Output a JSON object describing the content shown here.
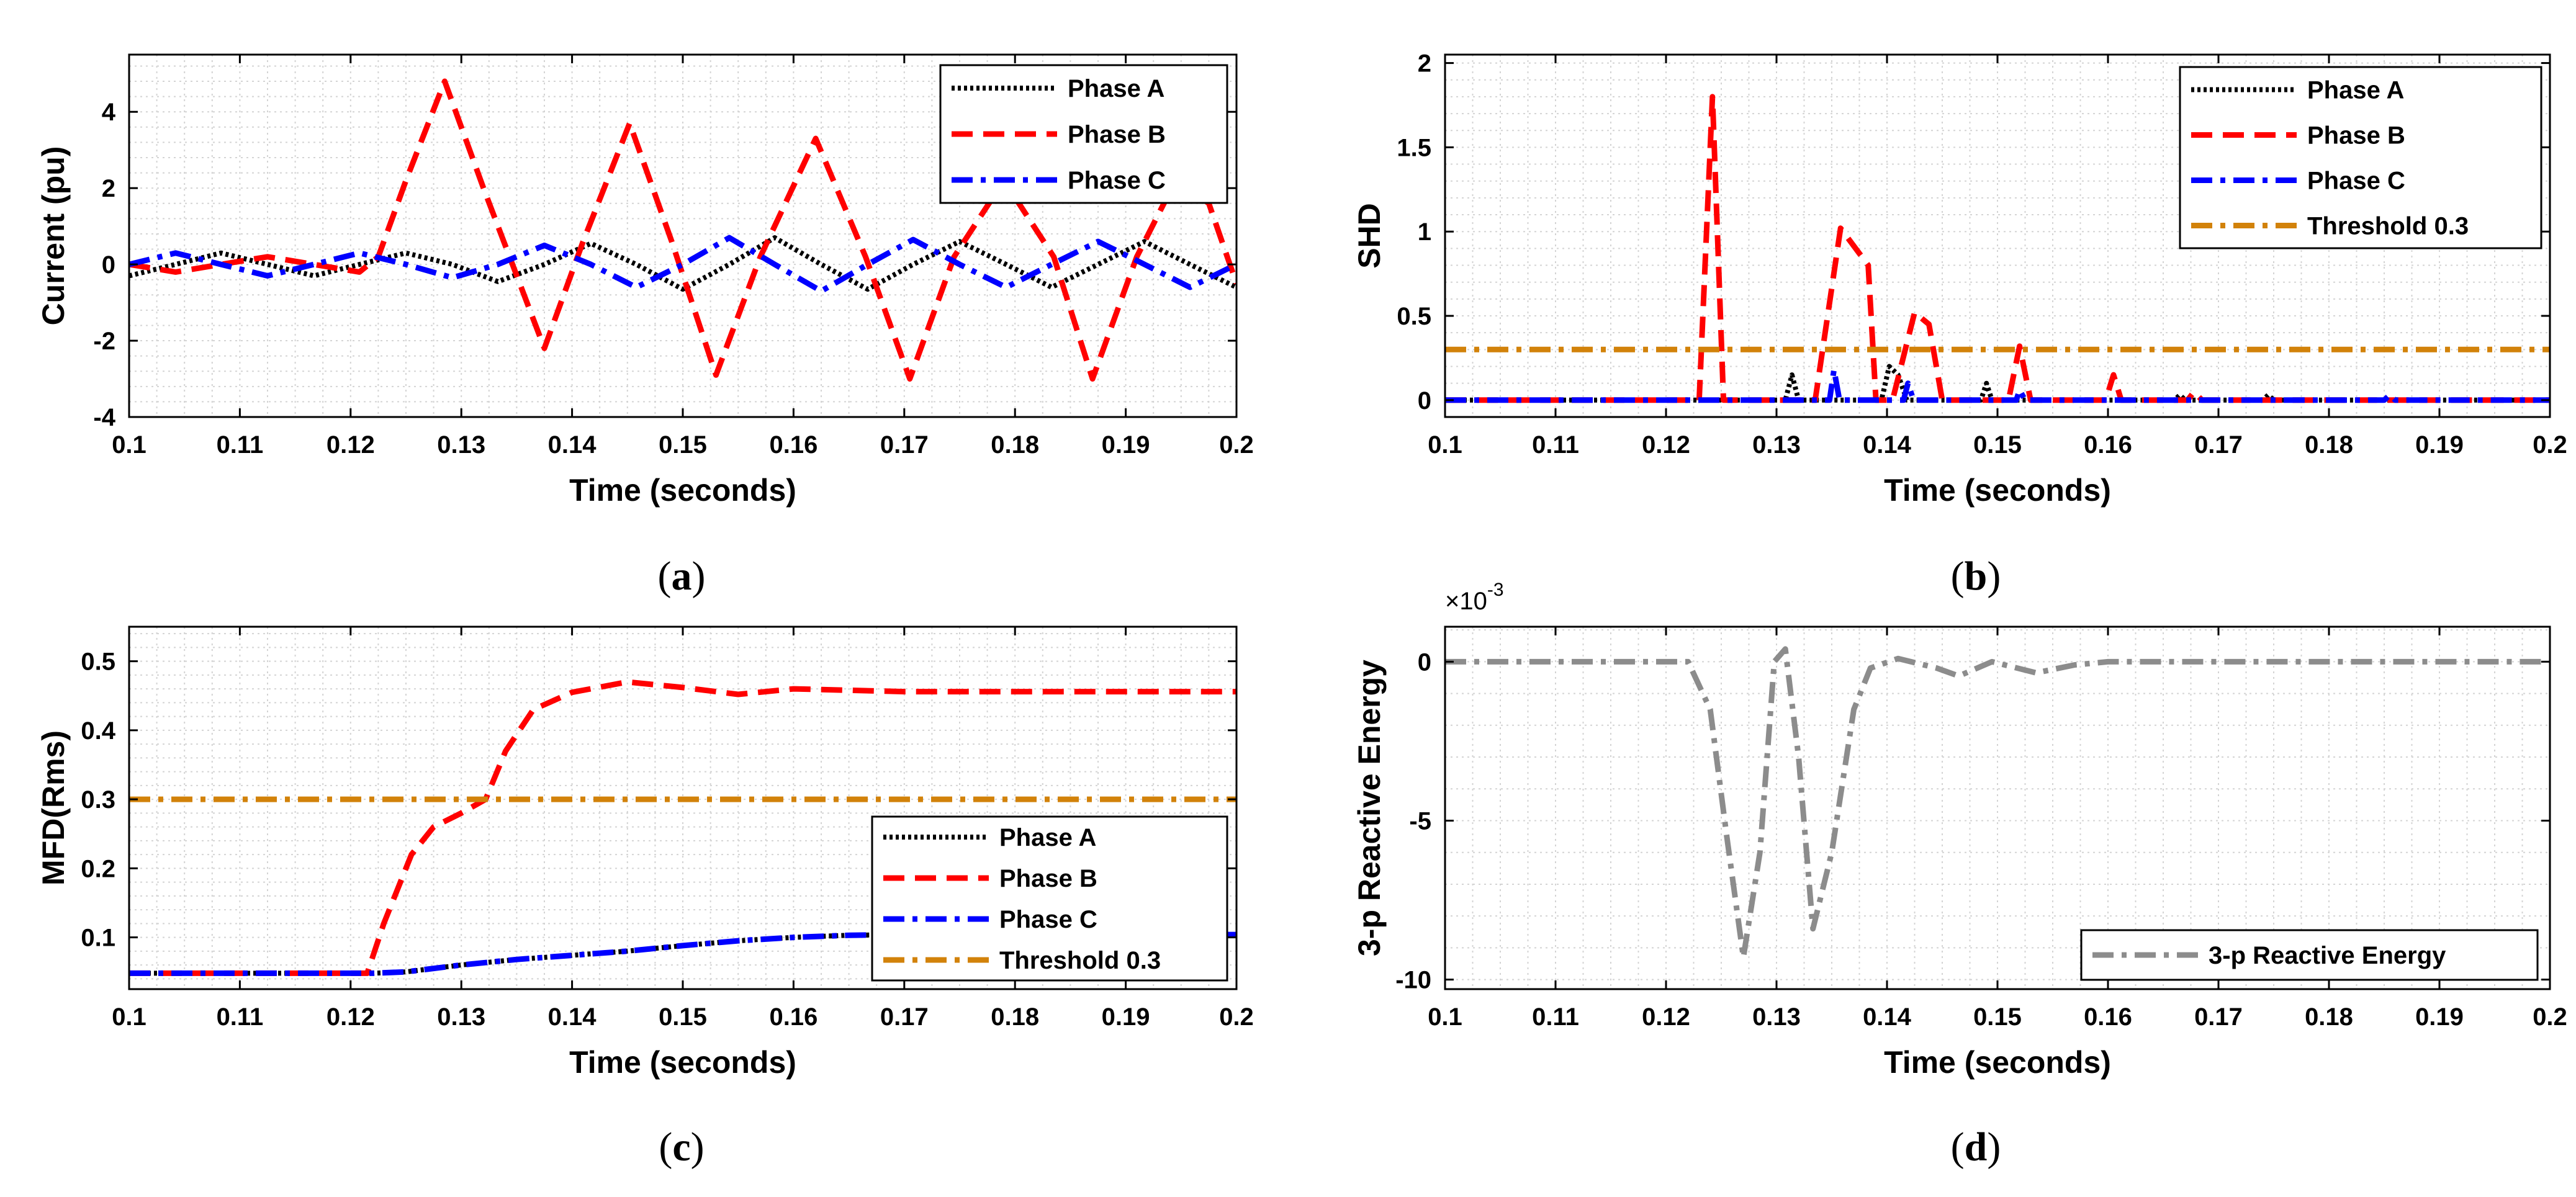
{
  "colors": {
    "phase_a": "#000000",
    "phase_b": "#ff0000",
    "phase_c": "#0000ff",
    "threshold": "#d2820a",
    "reactive": "#8c8c8c",
    "grid": "#d4d4d4"
  },
  "chart_data": [
    {
      "id": "a",
      "type": "line",
      "caption": "a",
      "xlabel": "Time (seconds)",
      "ylabel": "Current (pu)",
      "xlim": [
        0.1,
        0.2
      ],
      "ylim": [
        -4,
        5.5
      ],
      "xticks": [
        0.1,
        0.11,
        0.12,
        0.13,
        0.14,
        0.15,
        0.16,
        0.17,
        0.18,
        0.19,
        0.2
      ],
      "xtick_labels": [
        "0.1",
        "0.11",
        "0.12",
        "0.13",
        "0.14",
        "0.15",
        "0.16",
        "0.17",
        "0.18",
        "0.19",
        "0.2"
      ],
      "yticks": [
        -4,
        -2,
        0,
        2,
        4
      ],
      "ytick_labels": [
        "-4",
        "-2",
        "0",
        "2",
        "4"
      ],
      "grid": true,
      "legend_position": "top-right",
      "series": [
        {
          "name": "Phase A",
          "style": "dotted",
          "color": "#000000",
          "x": [
            0.1,
            0.1042,
            0.1083,
            0.1125,
            0.1167,
            0.1208,
            0.125,
            0.1292,
            0.1333,
            0.1375,
            0.1417,
            0.1458,
            0.15,
            0.1542,
            0.1583,
            0.1625,
            0.1667,
            0.1708,
            0.175,
            0.1792,
            0.1833,
            0.1875,
            0.1917,
            0.1958,
            0.2
          ],
          "y": [
            -0.3,
            0,
            0.3,
            0,
            -0.3,
            0,
            0.3,
            0,
            -0.45,
            0,
            0.55,
            0,
            -0.65,
            0,
            0.7,
            0,
            -0.65,
            0,
            0.6,
            0,
            -0.6,
            0,
            0.6,
            0,
            -0.6
          ]
        },
        {
          "name": "Phase B",
          "style": "dashed",
          "color": "#ff0000",
          "x": [
            0.1,
            0.1042,
            0.1083,
            0.1125,
            0.1167,
            0.1208,
            0.1225,
            0.125,
            0.1285,
            0.132,
            0.1375,
            0.141,
            0.1452,
            0.149,
            0.153,
            0.157,
            0.162,
            0.1665,
            0.1705,
            0.1745,
            0.179,
            0.1835,
            0.187,
            0.191,
            0.1945,
            0.1975,
            0.2
          ],
          "y": [
            0,
            -0.2,
            0,
            0.2,
            0,
            -0.2,
            0.2,
            2.2,
            4.8,
            2,
            -2.2,
            0.6,
            3.7,
            0.6,
            -2.9,
            0.2,
            3.3,
            0.2,
            -3,
            0.2,
            2.2,
            0.2,
            -3,
            0.2,
            2.2,
            1.6,
            -0.5
          ]
        },
        {
          "name": "Phase C",
          "style": "dashdot",
          "color": "#0000ff",
          "x": [
            0.1,
            0.1042,
            0.1083,
            0.1125,
            0.1167,
            0.1208,
            0.125,
            0.1292,
            0.1333,
            0.1375,
            0.1417,
            0.1458,
            0.15,
            0.1542,
            0.1583,
            0.1625,
            0.1667,
            0.1708,
            0.175,
            0.1792,
            0.1833,
            0.1875,
            0.1917,
            0.1958,
            0.2
          ],
          "y": [
            0,
            0.3,
            0,
            -0.3,
            0,
            0.3,
            0,
            -0.35,
            0,
            0.5,
            0,
            -0.6,
            0,
            0.7,
            0,
            -0.7,
            0,
            0.65,
            0,
            -0.6,
            0,
            0.6,
            0,
            -0.6,
            0
          ]
        }
      ]
    },
    {
      "id": "b",
      "type": "line",
      "caption": "b",
      "xlabel": "Time (seconds)",
      "ylabel": "SHD",
      "xlim": [
        0.1,
        0.2
      ],
      "ylim": [
        -0.1,
        2.05
      ],
      "xticks": [
        0.1,
        0.11,
        0.12,
        0.13,
        0.14,
        0.15,
        0.16,
        0.17,
        0.18,
        0.19,
        0.2
      ],
      "xtick_labels": [
        "0.1",
        "0.11",
        "0.12",
        "0.13",
        "0.14",
        "0.15",
        "0.16",
        "0.17",
        "0.18",
        "0.19",
        "0.2"
      ],
      "yticks": [
        0,
        0.5,
        1,
        1.5,
        2
      ],
      "ytick_labels": [
        "0",
        "0.5",
        "1",
        "1.5",
        "2"
      ],
      "grid": true,
      "legend_position": "top-right",
      "series": [
        {
          "name": "Phase A",
          "style": "dotted",
          "color": "#000000",
          "x": [
            0.1,
            0.1308,
            0.1314,
            0.132,
            0.1395,
            0.1402,
            0.141,
            0.1418,
            0.1485,
            0.149,
            0.1495,
            0.166,
            0.1665,
            0.167,
            0.174,
            0.1745,
            0.175,
            0.2
          ],
          "y": [
            0,
            0,
            0.15,
            0,
            0,
            0.2,
            0.15,
            0,
            0,
            0.1,
            0,
            0,
            0.03,
            0,
            0,
            0.03,
            0,
            0
          ]
        },
        {
          "name": "Phase B",
          "style": "dashed",
          "color": "#ff0000",
          "x": [
            0.1,
            0.123,
            0.1242,
            0.1252,
            0.1335,
            0.1358,
            0.1383,
            0.139,
            0.1405,
            0.1425,
            0.1438,
            0.145,
            0.151,
            0.152,
            0.153,
            0.1598,
            0.1605,
            0.1612,
            0.1672,
            0.1678,
            0.1685,
            0.2
          ],
          "y": [
            0,
            0,
            1.8,
            0,
            0,
            1.02,
            0.8,
            0,
            0,
            0.52,
            0.45,
            0,
            0,
            0.32,
            0,
            0,
            0.15,
            0,
            0,
            0.05,
            0,
            0
          ]
        },
        {
          "name": "Phase C",
          "style": "dashdot",
          "color": "#0000ff",
          "x": [
            0.1,
            0.1348,
            0.1352,
            0.1357,
            0.1415,
            0.1419,
            0.1424,
            0.1517,
            0.152,
            0.1525,
            0.185,
            0.1855,
            0.186,
            0.2
          ],
          "y": [
            0,
            0,
            0.18,
            0,
            0,
            0.1,
            0,
            0,
            0.06,
            0,
            0,
            0.03,
            0,
            0
          ]
        },
        {
          "name": "Threshold 0.3",
          "style": "dashdot",
          "color": "#d2820a",
          "x": [
            0.1,
            0.2
          ],
          "y": [
            0.3,
            0.3
          ]
        }
      ]
    },
    {
      "id": "c",
      "type": "line",
      "caption": "c",
      "xlabel": "Time (seconds)",
      "ylabel": "MFD(Rms)",
      "xlim": [
        0.1,
        0.2
      ],
      "ylim": [
        0.025,
        0.55
      ],
      "xticks": [
        0.1,
        0.11,
        0.12,
        0.13,
        0.14,
        0.15,
        0.16,
        0.17,
        0.18,
        0.19,
        0.2
      ],
      "xtick_labels": [
        "0.1",
        "0.11",
        "0.12",
        "0.13",
        "0.14",
        "0.15",
        "0.16",
        "0.17",
        "0.18",
        "0.19",
        "0.2"
      ],
      "yticks": [
        0.1,
        0.2,
        0.3,
        0.4,
        0.5
      ],
      "ytick_labels": [
        "0.1",
        "0.2",
        "0.3",
        "0.4",
        "0.5"
      ],
      "grid": true,
      "legend_position": "bottom-right",
      "series": [
        {
          "name": "Phase A",
          "style": "dotted",
          "color": "#000000",
          "x": [
            0.1,
            0.122,
            0.125,
            0.13,
            0.135,
            0.14,
            0.145,
            0.15,
            0.155,
            0.16,
            0.165,
            0.17,
            0.18,
            0.19,
            0.2
          ],
          "y": [
            0.048,
            0.048,
            0.05,
            0.06,
            0.068,
            0.074,
            0.08,
            0.088,
            0.095,
            0.1,
            0.103,
            0.104,
            0.104,
            0.104,
            0.104
          ]
        },
        {
          "name": "Phase B",
          "style": "dashed",
          "color": "#ff0000",
          "x": [
            0.1,
            0.1215,
            0.123,
            0.1255,
            0.1275,
            0.13,
            0.1322,
            0.134,
            0.1365,
            0.14,
            0.145,
            0.15,
            0.155,
            0.16,
            0.17,
            0.18,
            0.19,
            0.2
          ],
          "y": [
            0.048,
            0.048,
            0.12,
            0.22,
            0.26,
            0.28,
            0.3,
            0.37,
            0.43,
            0.455,
            0.47,
            0.462,
            0.452,
            0.46,
            0.456,
            0.456,
            0.456,
            0.456
          ]
        },
        {
          "name": "Phase C",
          "style": "dashdot",
          "color": "#0000ff",
          "x": [
            0.1,
            0.122,
            0.125,
            0.13,
            0.135,
            0.14,
            0.145,
            0.15,
            0.155,
            0.16,
            0.165,
            0.17,
            0.18,
            0.19,
            0.2
          ],
          "y": [
            0.048,
            0.048,
            0.05,
            0.06,
            0.068,
            0.074,
            0.08,
            0.088,
            0.095,
            0.1,
            0.103,
            0.104,
            0.104,
            0.104,
            0.104
          ]
        },
        {
          "name": "Threshold 0.3",
          "style": "dashdot",
          "color": "#d2820a",
          "x": [
            0.1,
            0.2
          ],
          "y": [
            0.3,
            0.3
          ]
        }
      ]
    },
    {
      "id": "d",
      "type": "line",
      "caption": "d",
      "xlabel": "Time (seconds)",
      "ylabel": "3-p Reactive Energy",
      "y_multiplier": "×10",
      "y_multiplier_exponent": "-3",
      "xlim": [
        0.1,
        0.2
      ],
      "ylim": [
        -10.3,
        1.1
      ],
      "xticks": [
        0.1,
        0.11,
        0.12,
        0.13,
        0.14,
        0.15,
        0.16,
        0.17,
        0.18,
        0.19,
        0.2
      ],
      "xtick_labels": [
        "0.1",
        "0.11",
        "0.12",
        "0.13",
        "0.14",
        "0.15",
        "0.16",
        "0.17",
        "0.18",
        "0.19",
        "0.2"
      ],
      "yticks": [
        -10,
        -5,
        0
      ],
      "ytick_labels": [
        "-10",
        "-5",
        "0"
      ],
      "grid": true,
      "legend_position": "bottom-right",
      "series": [
        {
          "name": "3-p Reactive Energy",
          "style": "dashdot",
          "color": "#8c8c8c",
          "x": [
            0.1,
            0.122,
            0.124,
            0.1255,
            0.127,
            0.1285,
            0.1298,
            0.1308,
            0.132,
            0.1333,
            0.135,
            0.137,
            0.1385,
            0.141,
            0.1445,
            0.1465,
            0.1495,
            0.1535,
            0.157,
            0.16,
            0.17,
            0.18,
            0.19,
            0.2
          ],
          "y": [
            0,
            0,
            -1.5,
            -5.5,
            -9.3,
            -6,
            0,
            0.4,
            -3,
            -8.4,
            -6,
            -1.5,
            -0.2,
            0.1,
            -0.2,
            -0.45,
            0,
            -0.35,
            -0.1,
            0,
            0,
            0,
            0,
            0
          ]
        }
      ]
    }
  ]
}
